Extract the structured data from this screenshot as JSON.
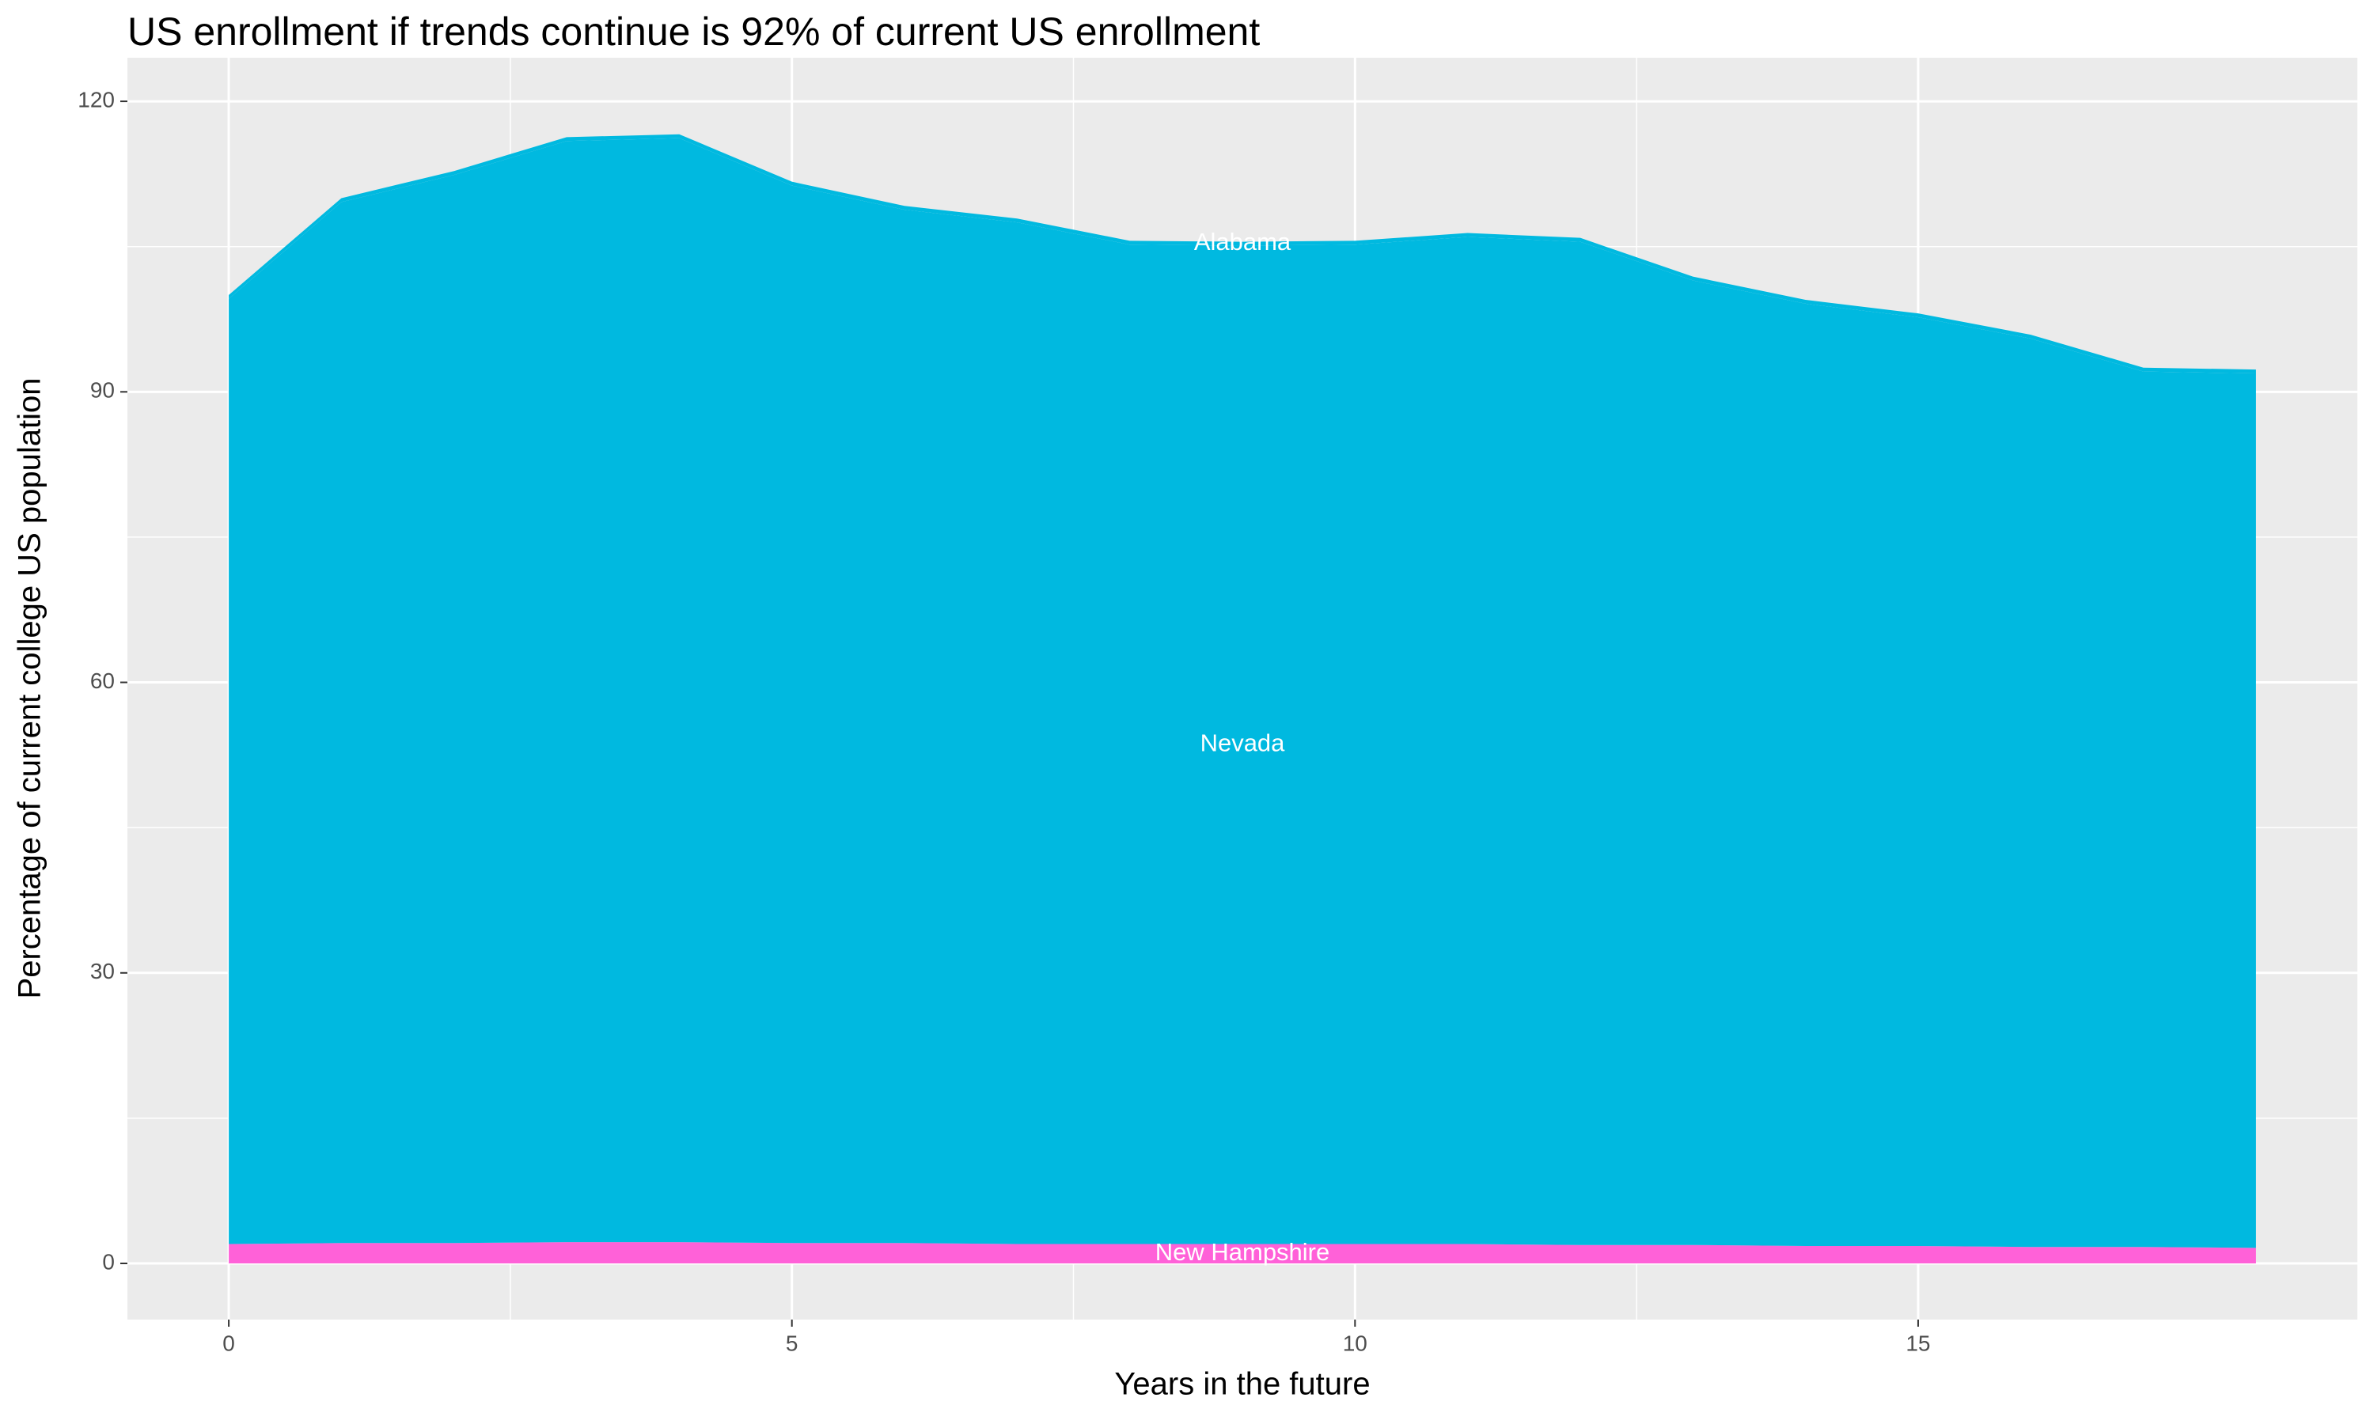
{
  "chart_data": {
    "type": "stacked_area",
    "title": "US enrollment if trends continue is 92% of current US enrollment",
    "x_label": "Years in the future",
    "y_label": "Percentage of current college US population",
    "x": [
      0,
      1,
      2,
      3,
      4,
      5,
      6,
      7,
      8,
      9,
      10,
      11,
      12,
      13,
      14,
      15,
      16,
      17,
      18
    ],
    "series": [
      {
        "name": "New Hampshire",
        "color": "#FF61D8",
        "values": [
          2.0,
          2.1,
          2.1,
          2.2,
          2.2,
          2.1,
          2.1,
          2.0,
          2.0,
          2.0,
          2.0,
          2.0,
          1.9,
          1.9,
          1.8,
          1.8,
          1.7,
          1.7,
          1.6
        ]
      },
      {
        "name": "Nevada",
        "color": "#00B9E0",
        "values": [
          97.6,
          107.5,
          110.3,
          113.7,
          114.0,
          109.2,
          106.7,
          105.5,
          103.2,
          103.1,
          103.2,
          104.0,
          103.6,
          99.6,
          97.3,
          95.9,
          93.8,
          90.4,
          90.3
        ]
      },
      {
        "name": "Alabama",
        "color": "#00B9E0",
        "values": [
          0.4,
          0.4,
          0.4,
          0.4,
          0.4,
          0.4,
          0.4,
          0.4,
          0.4,
          0.4,
          0.4,
          0.4,
          0.4,
          0.4,
          0.4,
          0.4,
          0.4,
          0.4,
          0.4
        ]
      }
    ],
    "label_x": 9,
    "xlim": [
      -0.9,
      18.9
    ],
    "xticks": [
      0,
      5,
      10,
      15
    ],
    "ylim": [
      -5.8,
      124.5
    ],
    "yticks": [
      0,
      30,
      60,
      90,
      120
    ],
    "grid": true
  }
}
